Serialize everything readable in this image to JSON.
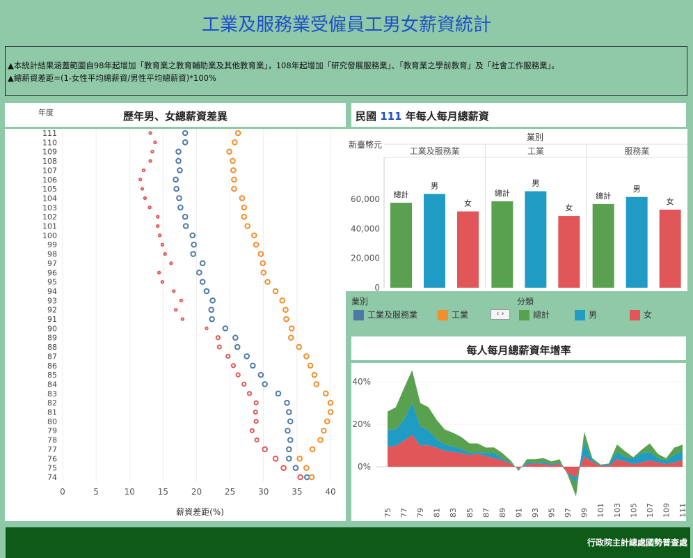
{
  "header": {
    "title": "工業及服務業受僱員工男女薪資統計"
  },
  "notes": [
    "▲本統計結果涵蓋範圍自98年起增加「教育業之教育輔助業及其他教育業」，108年起增加「研究發展服務業」、「教育業之學前教育」及「社會工作服務業」。",
    "▲總薪資差距=(1-女性平均總薪資/男性平均總薪資)*100%"
  ],
  "footer": {
    "text": "行政院主計總處國勢普查處"
  },
  "colors": {
    "blue": "#4e79a7",
    "orange": "#f28e2b",
    "red": "#e15759",
    "green": "#59a14f",
    "teal": "#1f9bc4"
  },
  "legend": {
    "industry": {
      "title": "業別",
      "items": [
        "工業及服務業",
        "工業"
      ],
      "nav_icon": "pager-arrows-icon"
    },
    "category": {
      "title": "分類",
      "items": [
        "總計",
        "男",
        "女"
      ]
    }
  },
  "chart_data": [
    {
      "type": "scatter",
      "title": "歷年男、女總薪資差異",
      "ylabel_top": "年度",
      "xlabel": "薪資差距(%)",
      "xlim": [
        0,
        42
      ],
      "xticks": [
        0,
        5,
        10,
        15,
        20,
        25,
        30,
        35,
        40
      ],
      "categories": [
        "74",
        "75",
        "76",
        "77",
        "78",
        "79",
        "80",
        "81",
        "82",
        "83",
        "84",
        "85",
        "86",
        "87",
        "88",
        "89",
        "90",
        "91",
        "92",
        "93",
        "94",
        "95",
        "96",
        "97",
        "98",
        "99",
        "100",
        "101",
        "102",
        "103",
        "104",
        "105",
        "106",
        "107",
        "108",
        "109",
        "110",
        "111"
      ],
      "series": [
        {
          "name": "工業及服務業",
          "color": "#4e79a7",
          "values": [
            36.5,
            34.8,
            33.8,
            33.8,
            34.0,
            33.6,
            34.0,
            33.8,
            33.5,
            32.2,
            30.2,
            29.6,
            28.4,
            27.5,
            26.1,
            25.8,
            24.3,
            22.3,
            22.2,
            22.4,
            21.5,
            20.9,
            20.4,
            20.9,
            19.5,
            19.6,
            19.4,
            18.4,
            18.3,
            17.6,
            17.4,
            17.0,
            16.9,
            17.5,
            17.3,
            17.3,
            18.3,
            18.3
          ]
        },
        {
          "name": "工業",
          "color": "#f28e2b",
          "values": [
            37.2,
            36.4,
            35.4,
            37.3,
            38.5,
            39.0,
            39.5,
            40.0,
            40.0,
            39.3,
            37.9,
            37.6,
            37.0,
            36.4,
            35.3,
            34.1,
            34.2,
            33.4,
            33.3,
            32.8,
            31.8,
            30.6,
            30.0,
            29.9,
            29.6,
            28.9,
            28.6,
            27.6,
            27.1,
            27.1,
            26.8,
            25.6,
            25.6,
            25.5,
            25.4,
            24.9,
            25.7,
            26.2
          ]
        },
        {
          "name": "女",
          "color": "#e15759",
          "values": [
            35.5,
            33.0,
            31.8,
            30.2,
            29.0,
            28.3,
            28.9,
            28.8,
            28.9,
            27.9,
            27.1,
            26.2,
            25.5,
            24.7,
            23.4,
            23.2,
            21.5,
            17.9,
            16.9,
            17.7,
            16.6,
            14.9,
            14.4,
            16.2,
            15.3,
            14.9,
            14.5,
            14.2,
            14.2,
            13.0,
            12.3,
            11.9,
            11.6,
            12.1,
            13.1,
            13.4,
            13.8,
            13.1
          ]
        }
      ]
    },
    {
      "type": "bar",
      "title_prefix": "民國",
      "title_year": "111",
      "title_suffix": "年每人每月總薪資",
      "header_label": "業別",
      "ylabel": "新臺幣元",
      "ylim": [
        0,
        70000
      ],
      "yticks": [
        0,
        20000,
        40000,
        60000
      ],
      "ytick_labels": [
        "0",
        "20,000",
        "40,000",
        "60,000"
      ],
      "groups": [
        "工業及服務業",
        "工業",
        "服務業"
      ],
      "bar_labels": [
        "總計",
        "男",
        "女"
      ],
      "series": [
        {
          "name": "總計",
          "color": "#59a14f",
          "values": [
            57700,
            58700,
            56800
          ]
        },
        {
          "name": "男",
          "color": "#1f9bc4",
          "values": [
            63700,
            65500,
            61600
          ]
        },
        {
          "name": "女",
          "color": "#e15759",
          "values": [
            51800,
            48700,
            53000
          ]
        }
      ]
    },
    {
      "type": "area",
      "title": "每人每月總薪資年增率",
      "ylim": [
        -15,
        50
      ],
      "yticks": [
        0,
        20,
        40
      ],
      "ytick_labels": [
        "0%",
        "20%",
        "40%"
      ],
      "x": [
        75,
        76,
        77,
        78,
        79,
        80,
        81,
        82,
        83,
        84,
        85,
        86,
        87,
        88,
        89,
        90,
        91,
        92,
        93,
        94,
        95,
        96,
        97,
        98,
        99,
        100,
        101,
        102,
        103,
        104,
        105,
        106,
        107,
        108,
        109,
        110,
        111
      ],
      "xtick_labels": [
        "75",
        "77",
        "79",
        "81",
        "83",
        "85",
        "87",
        "89",
        "91",
        "93",
        "95",
        "97",
        "99",
        "101",
        "103",
        "105",
        "107",
        "109",
        "111"
      ],
      "series": [
        {
          "name": "女",
          "color": "#e15759",
          "values": [
            9.5,
            9.8,
            12.3,
            15.0,
            10.0,
            10.1,
            9.0,
            7.5,
            7.0,
            6.5,
            5.5,
            6.2,
            5.0,
            4.1,
            3.0,
            1.5,
            -1.0,
            1.0,
            1.5,
            1.3,
            0.8,
            1.5,
            -3.0,
            -5.0,
            5.0,
            2.2,
            0.5,
            0.5,
            3.6,
            2.5,
            1.2,
            2.0,
            3.0,
            2.0,
            1.3,
            2.0,
            3.2
          ]
        },
        {
          "name": "男",
          "color": "#1f9bc4",
          "values": [
            8.0,
            7.7,
            9.7,
            15.0,
            9.0,
            7.0,
            4.0,
            3.0,
            2.5,
            2.0,
            1.0,
            0.8,
            1.5,
            2.5,
            1.0,
            0.5,
            -0.5,
            1.0,
            0.5,
            1.0,
            0.5,
            0.5,
            -0.4,
            -2.5,
            6.5,
            0.8,
            0.3,
            0.8,
            3.4,
            2.0,
            2.8,
            4.5,
            4.0,
            2.0,
            1.7,
            3.5,
            4.2
          ]
        },
        {
          "name": "總計",
          "color": "#59a14f",
          "values": [
            8.5,
            10.5,
            15.0,
            15.5,
            11.0,
            10.9,
            9.0,
            7.0,
            6.5,
            5.5,
            4.5,
            4.0,
            2.5,
            2.5,
            2.5,
            1.0,
            -0.5,
            1.5,
            1.5,
            1.8,
            1.2,
            1.5,
            -0.6,
            -6.5,
            5.0,
            1.0,
            0.2,
            0.2,
            3.5,
            2.7,
            0.5,
            1.5,
            4.0,
            2.0,
            1.0,
            3.5,
            3.0
          ]
        }
      ]
    }
  ]
}
